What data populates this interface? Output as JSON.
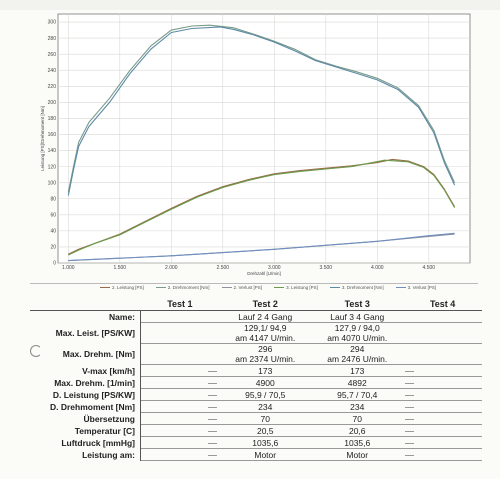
{
  "chart_data": {
    "type": "line",
    "xlabel": "Drehzahl [U/min]",
    "ylabel": "Leistung [PS]/Drehmoment [Nm]",
    "xlim": [
      900,
      4900
    ],
    "ylim": [
      0,
      310
    ],
    "x_ticks": [
      "1.000",
      "1.500",
      "2.000",
      "2.500",
      "3.000",
      "3.500",
      "4.000",
      "4.500"
    ],
    "x_tick_values": [
      1000,
      1500,
      2000,
      2500,
      3000,
      3500,
      4000,
      4500
    ],
    "y_ticks": [
      0,
      20,
      40,
      60,
      80,
      100,
      120,
      140,
      160,
      180,
      200,
      220,
      240,
      260,
      280,
      300
    ],
    "grid": true,
    "series": [
      {
        "name": "2. Leistung [PS]",
        "color": "#9a6a4a",
        "x": [
          1000,
          1100,
          1250,
          1500,
          1750,
          2000,
          2250,
          2500,
          2750,
          3000,
          3250,
          3500,
          3750,
          4000,
          4147,
          4300,
          4450,
          4550,
          4650,
          4750
        ],
        "y": [
          11,
          17,
          24,
          36,
          52,
          68,
          83,
          95,
          104,
          111,
          115,
          118,
          121,
          125,
          129,
          127,
          120,
          110,
          92,
          70
        ]
      },
      {
        "name": "2. Drehmoment [Nm]",
        "color": "#7a9a8a",
        "x": [
          1000,
          1050,
          1100,
          1200,
          1400,
          1600,
          1800,
          2000,
          2200,
          2374,
          2600,
          2800,
          3000,
          3200,
          3400,
          3600,
          3800,
          4000,
          4200,
          4400,
          4550,
          4650,
          4750
        ],
        "y": [
          88,
          120,
          150,
          175,
          205,
          240,
          270,
          290,
          295,
          296,
          293,
          285,
          276,
          266,
          253,
          245,
          238,
          230,
          218,
          196,
          165,
          128,
          100
        ]
      },
      {
        "name": "2. Verlust [PS]",
        "color": "#8f8f9f",
        "x": [
          1000,
          1500,
          2000,
          2500,
          3000,
          3500,
          4000,
          4500,
          4750
        ],
        "y": [
          3,
          6,
          9,
          13,
          17,
          22,
          27,
          33,
          36
        ]
      },
      {
        "name": "3. Leistung [PS]",
        "color": "#6a9a4a",
        "x": [
          1000,
          1100,
          1250,
          1500,
          1750,
          2000,
          2250,
          2500,
          2750,
          3000,
          3250,
          3500,
          3750,
          4070,
          4300,
          4450,
          4550,
          4650,
          4750
        ],
        "y": [
          10,
          16,
          24,
          35,
          51,
          67,
          82,
          94,
          103,
          110,
          114,
          117,
          120,
          128,
          126,
          119,
          109,
          91,
          69
        ]
      },
      {
        "name": "3. Drehmoment [Nm]",
        "color": "#5a8aa6",
        "x": [
          1000,
          1050,
          1100,
          1200,
          1400,
          1600,
          1800,
          2000,
          2200,
          2476,
          2600,
          2800,
          3000,
          3200,
          3400,
          3600,
          3800,
          4000,
          4200,
          4400,
          4550,
          4650,
          4750
        ],
        "y": [
          84,
          116,
          145,
          170,
          200,
          236,
          266,
          287,
          292,
          294,
          291,
          284,
          275,
          264,
          252,
          244,
          236,
          228,
          216,
          194,
          162,
          125,
          97
        ]
      },
      {
        "name": "3. Verlust [PS]",
        "color": "#6f8fbf",
        "x": [
          1000,
          1500,
          2000,
          2500,
          3000,
          3500,
          4000,
          4500,
          4750
        ],
        "y": [
          3,
          6,
          9,
          13,
          17,
          22,
          27,
          34,
          37
        ]
      }
    ]
  },
  "table": {
    "headers": [
      "",
      "Test 1",
      "Test 2",
      "Test 3",
      "Test 4"
    ],
    "rows": [
      {
        "label": "Name:",
        "t1": "",
        "t2": [
          "Lauf 2 4 Gang"
        ],
        "t3": [
          "Lauf 3 4 Gang"
        ],
        "t4": ""
      },
      {
        "label": "Max. Leist. [PS/KW]",
        "t1": "",
        "t2": [
          "129,1/ 94,9",
          "am 4147 U/min."
        ],
        "t3": [
          "127,9 / 94,0",
          "am 4070 U/min."
        ],
        "t4": ""
      },
      {
        "label": "Max. Drehm. [Nm]",
        "t1": "",
        "t2": [
          "296",
          "am 2374 U/min."
        ],
        "t3": [
          "294",
          "am 2476 U/min."
        ],
        "t4": ""
      },
      {
        "label": "V-max [km/h]",
        "t1": "",
        "t2": [
          "173"
        ],
        "t3": [
          "173"
        ],
        "t4": ""
      },
      {
        "label": "Max. Drehm. [1/min]",
        "t1": "",
        "t2": [
          "4900"
        ],
        "t3": [
          "4892"
        ],
        "t4": ""
      },
      {
        "label": "D. Leistung [PS/KW]",
        "t1": "",
        "t2": [
          "95,9 / 70,5"
        ],
        "t3": [
          "95,7 / 70,4"
        ],
        "t4": ""
      },
      {
        "label": "D. Drehmoment [Nm]",
        "t1": "",
        "t2": [
          "234"
        ],
        "t3": [
          "234"
        ],
        "t4": ""
      },
      {
        "label": "Übersetzung",
        "t1": "",
        "t2": [
          "70"
        ],
        "t3": [
          "70"
        ],
        "t4": ""
      },
      {
        "label": "Temperatur [C]",
        "t1": "",
        "t2": [
          "20,5"
        ],
        "t3": [
          "20,6"
        ],
        "t4": ""
      },
      {
        "label": "Luftdruck [mmHg]",
        "t1": "",
        "t2": [
          "1035,6"
        ],
        "t3": [
          "1035,6"
        ],
        "t4": ""
      },
      {
        "label": "Leistung am:",
        "t1": "",
        "t2": [
          "Motor"
        ],
        "t3": [
          "Motor"
        ],
        "t4": ""
      }
    ]
  }
}
